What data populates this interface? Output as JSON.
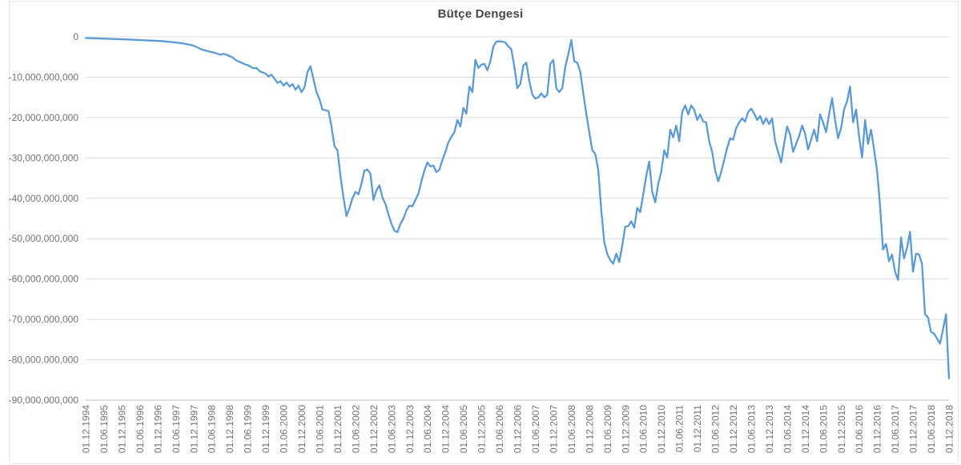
{
  "chart": {
    "title": "Bütçe Dengesi",
    "colors": {
      "line": "#5B9BD5",
      "grid": "#DCDCDC",
      "axis": "#BFBFBF",
      "tick_label": "#737373",
      "title": "#474747",
      "border": "#E9E9E9",
      "background": "#FFFFFF"
    },
    "chart_data": {
      "type": "line",
      "title": "Bütçe Dengesi",
      "xlabel": "",
      "ylabel": "",
      "legend": "none",
      "grid": "horizontal",
      "x_frequency": "monthly",
      "x_start_label": "01.12.1994",
      "x_end_label": "01.12.2018",
      "x_tick_every": 6,
      "x_tick_labels": [
        "01.12.1994",
        "01.06.1995",
        "01.12.1995",
        "01.06.1996",
        "01.12.1996",
        "01.06.1997",
        "01.12.1997",
        "01.06.1998",
        "01.12.1998",
        "01.06.1999",
        "01.12.1999",
        "01.06.2000",
        "01.12.2000",
        "01.06.2001",
        "01.12.2001",
        "01.06.2002",
        "01.12.2002",
        "01.06.2003",
        "01.12.2003",
        "01.06.2004",
        "01.12.2004",
        "01.06.2005",
        "01.12.2005",
        "01.06.2006",
        "01.12.2006",
        "01.06.2007",
        "01.12.2007",
        "01.06.2008",
        "01.12.2008",
        "01.06.2009",
        "01.12.2009",
        "01.06.2010",
        "01.12.2010",
        "01.06.2011",
        "01.12.2011",
        "01.06.2012",
        "01.12.2012",
        "01.06.2013",
        "01.12.2013",
        "01.06.2014",
        "01.12.2014",
        "01.06.2015",
        "01.12.2015",
        "01.06.2016",
        "01.12.2016",
        "01.06.2017",
        "01.12.2017",
        "01.06.2018",
        "01.12.2018"
      ],
      "ylim": [
        -90000000000,
        0
      ],
      "y_tick_step": 10000000000,
      "y_tick_labels": [
        "0",
        "-10,000,000,000",
        "-20,000,000,000",
        "-30,000,000,000",
        "-40,000,000,000",
        "-50,000,000,000",
        "-60,000,000,000",
        "-70,000,000,000",
        "-80,000,000,000",
        "-90,000,000,000"
      ],
      "value_scale": 1000000000,
      "values_billions": [
        -0.3,
        -0.32,
        -0.35,
        -0.38,
        -0.4,
        -0.43,
        -0.45,
        -0.48,
        -0.5,
        -0.53,
        -0.55,
        -0.58,
        -0.6,
        -0.63,
        -0.66,
        -0.7,
        -0.73,
        -0.76,
        -0.8,
        -0.83,
        -0.86,
        -0.9,
        -0.93,
        -0.96,
        -1.0,
        -1.05,
        -1.1,
        -1.18,
        -1.25,
        -1.32,
        -1.4,
        -1.5,
        -1.6,
        -1.7,
        -1.85,
        -2.0,
        -2.2,
        -2.5,
        -2.9,
        -3.2,
        -3.4,
        -3.6,
        -3.8,
        -3.95,
        -4.2,
        -4.45,
        -4.2,
        -4.45,
        -4.8,
        -5.1,
        -5.75,
        -6.1,
        -6.4,
        -6.8,
        -7.0,
        -7.4,
        -7.8,
        -7.7,
        -8.5,
        -8.8,
        -9.1,
        -9.8,
        -9.4,
        -10.4,
        -11.4,
        -11.0,
        -12.1,
        -11.3,
        -12.3,
        -11.7,
        -13.1,
        -12.1,
        -13.7,
        -12.5,
        -8.7,
        -7.3,
        -10.5,
        -13.7,
        -15.5,
        -18.0,
        -18.2,
        -18.4,
        -22.2,
        -27.1,
        -28.1,
        -34.5,
        -39.8,
        -44.4,
        -42.4,
        -40.0,
        -38.4,
        -39.0,
        -36.4,
        -33.1,
        -32.9,
        -33.9,
        -40.4,
        -38.0,
        -36.8,
        -39.8,
        -41.4,
        -44.0,
        -46.3,
        -48.0,
        -48.4,
        -46.3,
        -45.0,
        -43.0,
        -41.8,
        -42.0,
        -40.4,
        -38.8,
        -35.8,
        -33.1,
        -31.1,
        -32.1,
        -31.9,
        -33.5,
        -32.9,
        -30.5,
        -28.5,
        -26.1,
        -24.8,
        -23.6,
        -20.6,
        -22.2,
        -17.6,
        -19.0,
        -12.3,
        -13.7,
        -5.7,
        -7.7,
        -6.9,
        -6.7,
        -8.3,
        -6.1,
        -2.4,
        -1.2,
        -1.1,
        -1.2,
        -1.4,
        -2.4,
        -3.1,
        -7.4,
        -12.7,
        -11.7,
        -7.1,
        -6.4,
        -11.0,
        -14.3,
        -15.3,
        -15.0,
        -14.0,
        -15.0,
        -14.3,
        -6.7,
        -5.7,
        -12.7,
        -13.7,
        -12.7,
        -7.4,
        -4.4,
        -0.8,
        -6.1,
        -6.4,
        -8.7,
        -14.0,
        -19.0,
        -23.6,
        -28.1,
        -29.0,
        -33.0,
        -43.0,
        -50.9,
        -53.8,
        -55.3,
        -56.2,
        -53.7,
        -55.8,
        -51.7,
        -47.0,
        -46.9,
        -45.7,
        -47.3,
        -42.4,
        -43.4,
        -39.0,
        -34.5,
        -30.9,
        -38.4,
        -41.0,
        -36.4,
        -33.5,
        -28.1,
        -29.9,
        -23.0,
        -24.9,
        -22.0,
        -25.9,
        -18.6,
        -17.0,
        -19.2,
        -17.0,
        -18.0,
        -20.6,
        -19.2,
        -21.0,
        -21.2,
        -25.9,
        -28.5,
        -33.1,
        -35.8,
        -33.5,
        -30.5,
        -27.5,
        -25.1,
        -25.5,
        -22.6,
        -21.2,
        -20.2,
        -21.0,
        -18.6,
        -17.8,
        -19.0,
        -20.6,
        -19.6,
        -21.6,
        -20.2,
        -21.6,
        -20.2,
        -25.9,
        -28.5,
        -31.1,
        -26.5,
        -22.2,
        -24.2,
        -28.5,
        -26.5,
        -24.6,
        -22.0,
        -24.0,
        -27.9,
        -25.5,
        -23.0,
        -25.9,
        -19.2,
        -21.2,
        -23.6,
        -19.2,
        -15.2,
        -20.6,
        -25.1,
        -22.6,
        -18.0,
        -16.0,
        -12.3,
        -21.2,
        -18.0,
        -24.6,
        -29.9,
        -20.6,
        -26.5,
        -23.0,
        -27.9,
        -33.1,
        -41.8,
        -52.7,
        -51.3,
        -55.6,
        -53.9,
        -58.2,
        -60.2,
        -49.7,
        -54.9,
        -52.3,
        -48.3,
        -58.2,
        -53.7,
        -53.9,
        -56.2,
        -68.7,
        -69.5,
        -73.1,
        -73.5,
        -74.7,
        -76.0,
        -72.5,
        -68.7,
        -84.6
      ]
    }
  }
}
